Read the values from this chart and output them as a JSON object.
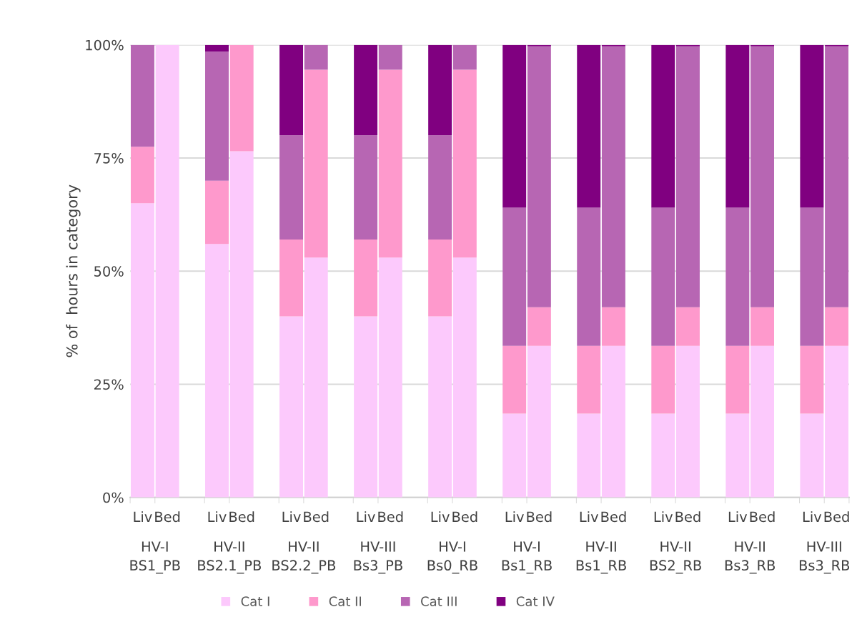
{
  "chart_data": {
    "type": "bar",
    "stacked": true,
    "ylabel": "% of  hours in category",
    "categories": [
      "Liv",
      "Bed",
      "Liv",
      "Bed",
      "Liv",
      "Bed",
      "Liv",
      "Bed",
      "Liv",
      "Bed",
      "Liv",
      "Bed",
      "Liv",
      "Bed",
      "Liv",
      "Bed",
      "Liv",
      "Bed",
      "Liv",
      "Bed"
    ],
    "annotations": [
      "HV-I\nBS1_PB",
      "HV-II\nBS2.1_PB",
      "HV-II\nBS2.2_PB",
      "HV-III\nBs3_PB",
      "HV-I\nBs0_RB",
      "HV-I\nBs1_RB",
      "HV-II\nBs1_RB",
      "HV-II\nBS2_RB",
      "HV-II\nBs3_RB",
      "HV-III\nBs3_RB"
    ],
    "series": [
      {
        "name": "Cat I",
        "color": "#fcc9fc",
        "values": [
          65,
          100,
          56,
          76.5,
          40,
          53,
          40,
          53,
          40,
          53,
          18.5,
          33.5,
          18.5,
          33.5,
          18.5,
          33.5,
          18.5,
          33.5,
          18.5,
          33.5
        ]
      },
      {
        "name": "Cat II",
        "color": "#fe99cc",
        "values": [
          12.5,
          0,
          14,
          23.5,
          17,
          41.5,
          17,
          41.5,
          17,
          41.5,
          15,
          8.5,
          15,
          8.5,
          15,
          8.5,
          15,
          8.5,
          15,
          8.5
        ]
      },
      {
        "name": "Cat III",
        "color": "#b766b3",
        "values": [
          22.5,
          0,
          28.5,
          0,
          23,
          5.5,
          23,
          5.5,
          23,
          5.5,
          30.5,
          57.7,
          30.5,
          57.7,
          30.5,
          57.7,
          30.5,
          57.7,
          30.5,
          57.7
        ]
      },
      {
        "name": "Cat IV",
        "color": "#800080",
        "values": [
          0,
          0,
          1.5,
          0,
          20,
          0,
          20,
          0,
          20,
          0,
          36,
          0.3,
          36,
          0.3,
          36,
          0.3,
          36,
          0.3,
          36,
          0.3
        ]
      }
    ],
    "ylim": [
      0,
      100
    ],
    "yticks": [
      {
        "value": 0,
        "label": "0%"
      },
      {
        "value": 25,
        "label": "25%"
      },
      {
        "value": 50,
        "label": "50%"
      },
      {
        "value": 75,
        "label": "75%"
      },
      {
        "value": 100,
        "label": "100%"
      }
    ],
    "grid": "y",
    "legend": "bottom"
  }
}
